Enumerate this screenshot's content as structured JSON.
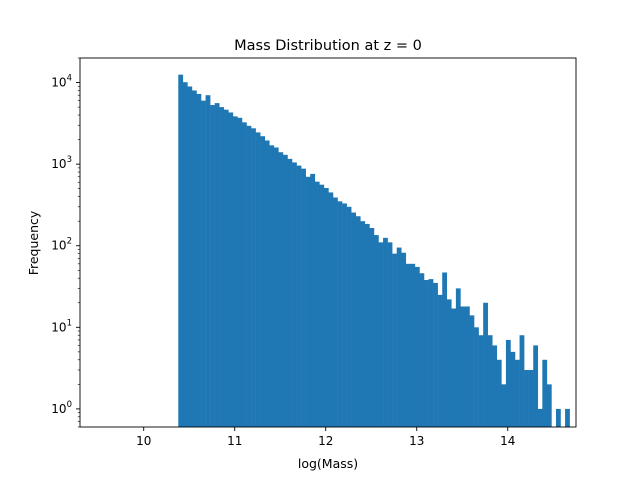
{
  "chart_data": {
    "type": "bar",
    "title": "Mass Distribution at z = 0",
    "xlabel": "log(Mass)",
    "ylabel": "Frequency",
    "xlim": [
      9.3,
      14.75
    ],
    "ylim": [
      0.6,
      20000
    ],
    "yscale": "log",
    "grid": false,
    "bar_color": "#1f77b4",
    "x_ticks": [
      {
        "value": 10,
        "label": "10"
      },
      {
        "value": 11,
        "label": "11"
      },
      {
        "value": 12,
        "label": "12"
      },
      {
        "value": 13,
        "label": "13"
      },
      {
        "value": 14,
        "label": "14"
      }
    ],
    "y_ticks": [
      {
        "value": 1,
        "base": "10",
        "exp": "0"
      },
      {
        "value": 10,
        "base": "10",
        "exp": "1"
      },
      {
        "value": 100,
        "base": "10",
        "exp": "2"
      },
      {
        "value": 1000,
        "base": "10",
        "exp": "3"
      },
      {
        "value": 10000,
        "base": "10",
        "exp": "4"
      }
    ],
    "bin_start": 10.38,
    "bin_width": 0.05,
    "values": [
      12500,
      10100,
      8950,
      8000,
      7250,
      6000,
      7000,
      5300,
      5600,
      5000,
      4650,
      4300,
      3850,
      3700,
      3250,
      2950,
      2750,
      2450,
      2200,
      1950,
      1700,
      1600,
      1400,
      1300,
      1160,
      1050,
      960,
      880,
      700,
      760,
      610,
      560,
      510,
      450,
      390,
      350,
      330,
      300,
      255,
      230,
      200,
      185,
      165,
      135,
      110,
      125,
      110,
      80,
      95,
      82,
      60,
      60,
      55,
      46,
      38,
      39,
      35,
      25,
      47,
      22,
      17,
      30,
      18,
      18,
      14,
      10,
      8,
      20,
      8,
      6,
      4,
      2,
      7,
      5,
      4,
      8,
      3,
      3,
      6,
      1,
      4,
      2,
      0,
      1,
      0,
      1,
      0,
      0
    ]
  }
}
